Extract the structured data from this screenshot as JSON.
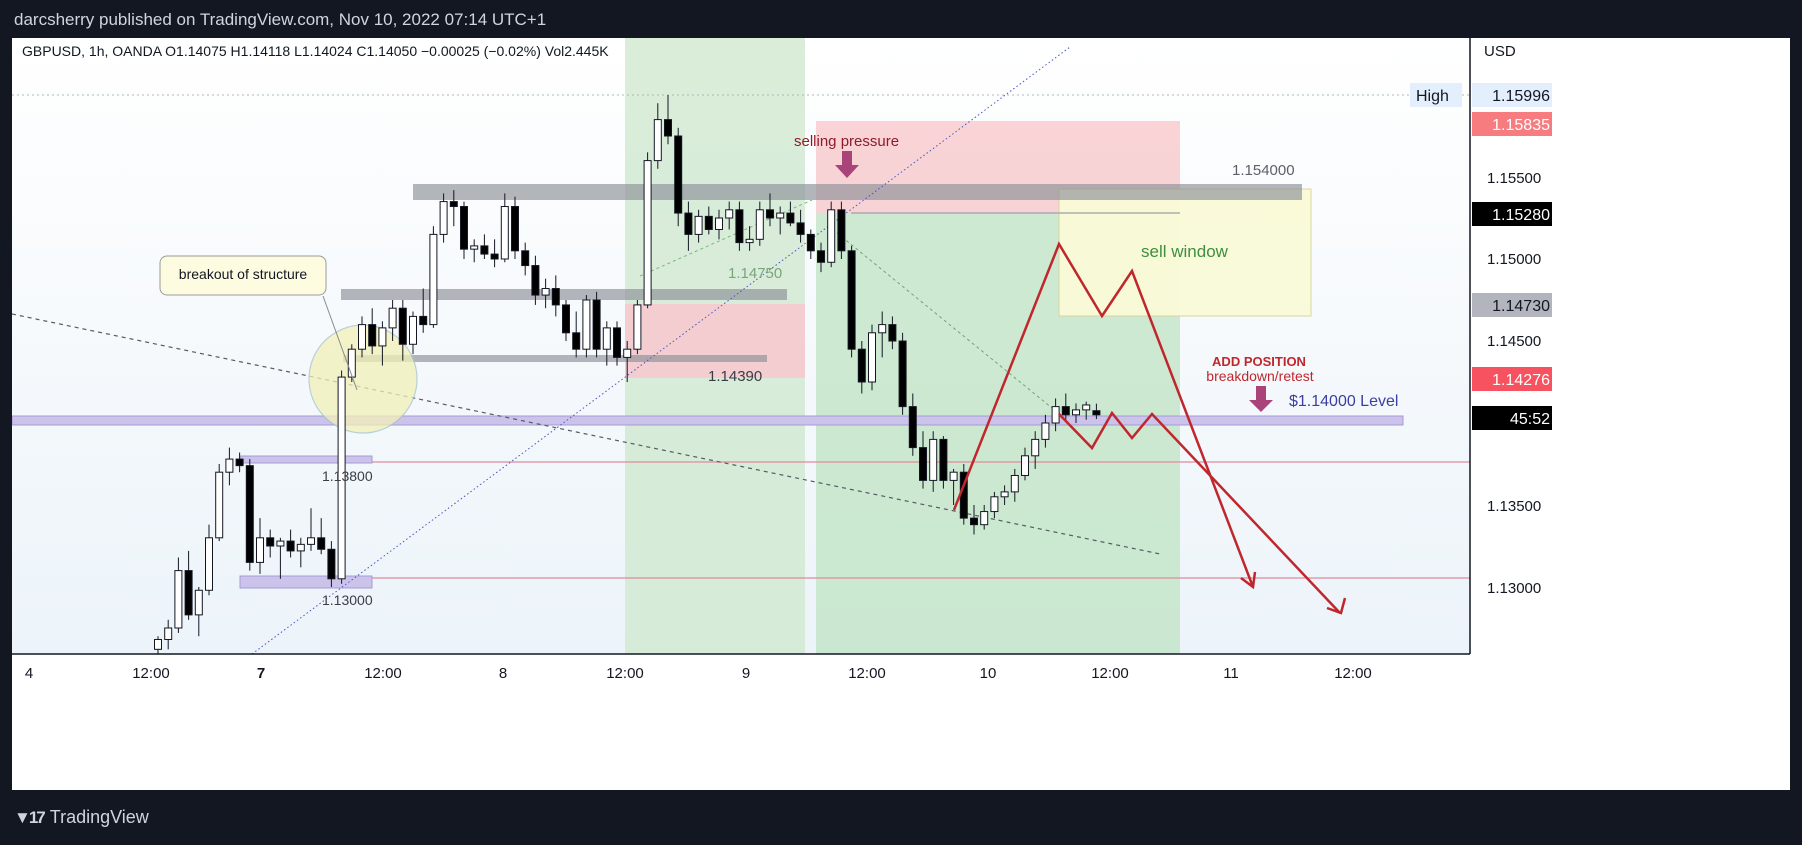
{
  "header": {
    "publisher": "darcsherry published on TradingView.com, Nov 10, 2022 07:14 UTC+1"
  },
  "footer": {
    "brand": "TradingView",
    "logo_icon": "tradingview-logo-icon"
  },
  "chart_data": {
    "type": "candlestick",
    "symbol_line": "GBPUSD, 1h, OANDA  O1.14075  H1.14118  L1.14024  C1.14050  −0.00025 (−0.02%)  Vol2.445K",
    "currency": "USD",
    "ylim": [
      1.127,
      1.162
    ],
    "x_ticks": [
      "4",
      "12:00",
      "7",
      "12:00",
      "8",
      "12:00",
      "9",
      "12:00",
      "10",
      "12:00",
      "11",
      "12:00"
    ],
    "y_ticks": [
      "1.15500",
      "1.15000",
      "1.14500",
      "1.13500",
      "1.13000"
    ],
    "price_tags": [
      {
        "label": "High",
        "value": "1.15996",
        "color": "#e3effd",
        "text_color": "#131722"
      },
      {
        "value": "1.15835",
        "color": "#f77c80",
        "text_color": "#ffffff"
      },
      {
        "value": "1.15280",
        "color": "#000000",
        "text_color": "#ffffff"
      },
      {
        "value": "1.14730",
        "color": "#b2b5be",
        "text_color": "#131722"
      },
      {
        "value": "1.14276",
        "color": "#f7525f",
        "text_color": "#ffffff"
      },
      {
        "value": "45:52",
        "color": "#000000",
        "text_color": "#ffffff"
      }
    ],
    "annotations": {
      "breakout": "breakout of structure",
      "selling_pressure": "selling pressure",
      "sell_window": "sell window",
      "add_position_1": "ADD POSITION",
      "add_position_2": "breakdown/retest",
      "level_label": "$1.14000 Level",
      "lvl_154": "1.154000",
      "lvl_14750": "1.14750",
      "lvl_14390": "1.14390",
      "lvl_13800": "1.13800",
      "lvl_13000": "1.13000"
    },
    "candles": [
      {
        "o": 1.1262,
        "h": 1.127,
        "l": 1.1255,
        "c": 1.1268
      },
      {
        "o": 1.1268,
        "h": 1.128,
        "l": 1.1262,
        "c": 1.1275
      },
      {
        "o": 1.1275,
        "h": 1.1318,
        "l": 1.1272,
        "c": 1.131
      },
      {
        "o": 1.131,
        "h": 1.1322,
        "l": 1.128,
        "c": 1.1283
      },
      {
        "o": 1.1283,
        "h": 1.13,
        "l": 1.127,
        "c": 1.1298
      },
      {
        "o": 1.1298,
        "h": 1.1338,
        "l": 1.1295,
        "c": 1.133
      },
      {
        "o": 1.133,
        "h": 1.1375,
        "l": 1.1328,
        "c": 1.137
      },
      {
        "o": 1.137,
        "h": 1.1385,
        "l": 1.1362,
        "c": 1.1378
      },
      {
        "o": 1.1378,
        "h": 1.1382,
        "l": 1.137,
        "c": 1.1374
      },
      {
        "o": 1.1374,
        "h": 1.1378,
        "l": 1.131,
        "c": 1.1315
      },
      {
        "o": 1.1315,
        "h": 1.1342,
        "l": 1.1308,
        "c": 1.133
      },
      {
        "o": 1.133,
        "h": 1.1335,
        "l": 1.1318,
        "c": 1.1325
      },
      {
        "o": 1.1325,
        "h": 1.133,
        "l": 1.1305,
        "c": 1.1328
      },
      {
        "o": 1.1328,
        "h": 1.1335,
        "l": 1.1318,
        "c": 1.1322
      },
      {
        "o": 1.1322,
        "h": 1.133,
        "l": 1.1312,
        "c": 1.1326
      },
      {
        "o": 1.1326,
        "h": 1.1348,
        "l": 1.1322,
        "c": 1.133
      },
      {
        "o": 1.133,
        "h": 1.1342,
        "l": 1.132,
        "c": 1.1323
      },
      {
        "o": 1.1323,
        "h": 1.1328,
        "l": 1.13,
        "c": 1.1305
      },
      {
        "o": 1.1305,
        "h": 1.1432,
        "l": 1.1302,
        "c": 1.1428
      },
      {
        "o": 1.1428,
        "h": 1.1448,
        "l": 1.1425,
        "c": 1.1445
      },
      {
        "o": 1.1445,
        "h": 1.1465,
        "l": 1.144,
        "c": 1.146
      },
      {
        "o": 1.146,
        "h": 1.147,
        "l": 1.1442,
        "c": 1.1447
      },
      {
        "o": 1.1447,
        "h": 1.1462,
        "l": 1.1435,
        "c": 1.1458
      },
      {
        "o": 1.1458,
        "h": 1.1475,
        "l": 1.145,
        "c": 1.147
      },
      {
        "o": 1.147,
        "h": 1.1475,
        "l": 1.1438,
        "c": 1.1448
      },
      {
        "o": 1.1448,
        "h": 1.1468,
        "l": 1.1442,
        "c": 1.1465
      },
      {
        "o": 1.1465,
        "h": 1.1482,
        "l": 1.1455,
        "c": 1.146
      },
      {
        "o": 1.146,
        "h": 1.152,
        "l": 1.1458,
        "c": 1.1515
      },
      {
        "o": 1.1515,
        "h": 1.154,
        "l": 1.151,
        "c": 1.1535
      },
      {
        "o": 1.1535,
        "h": 1.1542,
        "l": 1.152,
        "c": 1.1532
      },
      {
        "o": 1.1532,
        "h": 1.1535,
        "l": 1.15,
        "c": 1.1506
      },
      {
        "o": 1.1506,
        "h": 1.1512,
        "l": 1.1498,
        "c": 1.1508
      },
      {
        "o": 1.1508,
        "h": 1.1515,
        "l": 1.15,
        "c": 1.1503
      },
      {
        "o": 1.1503,
        "h": 1.1512,
        "l": 1.1495,
        "c": 1.15
      },
      {
        "o": 1.15,
        "h": 1.154,
        "l": 1.1498,
        "c": 1.1532
      },
      {
        "o": 1.1532,
        "h": 1.1538,
        "l": 1.15,
        "c": 1.1505
      },
      {
        "o": 1.1505,
        "h": 1.151,
        "l": 1.149,
        "c": 1.1496
      },
      {
        "o": 1.1496,
        "h": 1.1502,
        "l": 1.1472,
        "c": 1.1478
      },
      {
        "o": 1.1478,
        "h": 1.1488,
        "l": 1.147,
        "c": 1.1482
      },
      {
        "o": 1.1482,
        "h": 1.149,
        "l": 1.1465,
        "c": 1.1472
      },
      {
        "o": 1.1472,
        "h": 1.1475,
        "l": 1.145,
        "c": 1.1455
      },
      {
        "o": 1.1455,
        "h": 1.1468,
        "l": 1.144,
        "c": 1.1445
      },
      {
        "o": 1.1445,
        "h": 1.1478,
        "l": 1.144,
        "c": 1.1475
      },
      {
        "o": 1.1475,
        "h": 1.148,
        "l": 1.144,
        "c": 1.1445
      },
      {
        "o": 1.1445,
        "h": 1.1462,
        "l": 1.1435,
        "c": 1.1458
      },
      {
        "o": 1.1458,
        "h": 1.1462,
        "l": 1.1435,
        "c": 1.144
      },
      {
        "o": 1.144,
        "h": 1.145,
        "l": 1.1425,
        "c": 1.1445
      },
      {
        "o": 1.1445,
        "h": 1.1475,
        "l": 1.1442,
        "c": 1.1472
      },
      {
        "o": 1.1472,
        "h": 1.1565,
        "l": 1.147,
        "c": 1.156
      },
      {
        "o": 1.156,
        "h": 1.1595,
        "l": 1.1555,
        "c": 1.1585
      },
      {
        "o": 1.1585,
        "h": 1.16,
        "l": 1.157,
        "c": 1.1575
      },
      {
        "o": 1.1575,
        "h": 1.158,
        "l": 1.152,
        "c": 1.1528
      },
      {
        "o": 1.1528,
        "h": 1.1535,
        "l": 1.1505,
        "c": 1.1515
      },
      {
        "o": 1.1515,
        "h": 1.153,
        "l": 1.151,
        "c": 1.1526
      },
      {
        "o": 1.1526,
        "h": 1.1532,
        "l": 1.1515,
        "c": 1.1518
      },
      {
        "o": 1.1518,
        "h": 1.153,
        "l": 1.1512,
        "c": 1.1525
      },
      {
        "o": 1.1525,
        "h": 1.1535,
        "l": 1.1518,
        "c": 1.153
      },
      {
        "o": 1.153,
        "h": 1.1535,
        "l": 1.1505,
        "c": 1.151
      },
      {
        "o": 1.151,
        "h": 1.152,
        "l": 1.1505,
        "c": 1.1512
      },
      {
        "o": 1.1512,
        "h": 1.1535,
        "l": 1.1508,
        "c": 1.153
      },
      {
        "o": 1.153,
        "h": 1.154,
        "l": 1.152,
        "c": 1.1525
      },
      {
        "o": 1.1525,
        "h": 1.1532,
        "l": 1.1515,
        "c": 1.1528
      },
      {
        "o": 1.1528,
        "h": 1.1535,
        "l": 1.152,
        "c": 1.1522
      },
      {
        "o": 1.1522,
        "h": 1.153,
        "l": 1.151,
        "c": 1.1515
      },
      {
        "o": 1.1515,
        "h": 1.1518,
        "l": 1.15,
        "c": 1.1505
      },
      {
        "o": 1.1505,
        "h": 1.151,
        "l": 1.1492,
        "c": 1.1498
      },
      {
        "o": 1.1498,
        "h": 1.1535,
        "l": 1.1495,
        "c": 1.153
      },
      {
        "o": 1.153,
        "h": 1.1535,
        "l": 1.15,
        "c": 1.1505
      },
      {
        "o": 1.1505,
        "h": 1.1508,
        "l": 1.144,
        "c": 1.1445
      },
      {
        "o": 1.1445,
        "h": 1.145,
        "l": 1.1418,
        "c": 1.1425
      },
      {
        "o": 1.1425,
        "h": 1.146,
        "l": 1.142,
        "c": 1.1455
      },
      {
        "o": 1.1455,
        "h": 1.1468,
        "l": 1.144,
        "c": 1.146
      },
      {
        "o": 1.146,
        "h": 1.1465,
        "l": 1.1445,
        "c": 1.145
      },
      {
        "o": 1.145,
        "h": 1.1455,
        "l": 1.1405,
        "c": 1.141
      },
      {
        "o": 1.141,
        "h": 1.1418,
        "l": 1.138,
        "c": 1.1385
      },
      {
        "o": 1.1385,
        "h": 1.1395,
        "l": 1.136,
        "c": 1.1365
      },
      {
        "o": 1.1365,
        "h": 1.1395,
        "l": 1.1358,
        "c": 1.139
      },
      {
        "o": 1.139,
        "h": 1.1392,
        "l": 1.136,
        "c": 1.1365
      },
      {
        "o": 1.1365,
        "h": 1.1372,
        "l": 1.135,
        "c": 1.137
      },
      {
        "o": 1.137,
        "h": 1.1375,
        "l": 1.1338,
        "c": 1.1342
      },
      {
        "o": 1.1342,
        "h": 1.135,
        "l": 1.1332,
        "c": 1.1338
      },
      {
        "o": 1.1338,
        "h": 1.135,
        "l": 1.1335,
        "c": 1.1346
      },
      {
        "o": 1.1346,
        "h": 1.1358,
        "l": 1.1342,
        "c": 1.1355
      },
      {
        "o": 1.1355,
        "h": 1.1362,
        "l": 1.135,
        "c": 1.1358
      },
      {
        "o": 1.1358,
        "h": 1.1372,
        "l": 1.1352,
        "c": 1.1368
      },
      {
        "o": 1.1368,
        "h": 1.1385,
        "l": 1.1365,
        "c": 1.138
      },
      {
        "o": 1.138,
        "h": 1.1395,
        "l": 1.1372,
        "c": 1.139
      },
      {
        "o": 1.139,
        "h": 1.1405,
        "l": 1.1385,
        "c": 1.14
      },
      {
        "o": 1.14,
        "h": 1.1415,
        "l": 1.1395,
        "c": 1.141
      },
      {
        "o": 1.141,
        "h": 1.1418,
        "l": 1.1402,
        "c": 1.1405
      },
      {
        "o": 1.1405,
        "h": 1.1412,
        "l": 1.14,
        "c": 1.1408
      },
      {
        "o": 1.1408,
        "h": 1.1413,
        "l": 1.1402,
        "c": 1.1411
      },
      {
        "o": 1.14075,
        "h": 1.14118,
        "l": 1.14024,
        "c": 1.1405
      }
    ]
  }
}
